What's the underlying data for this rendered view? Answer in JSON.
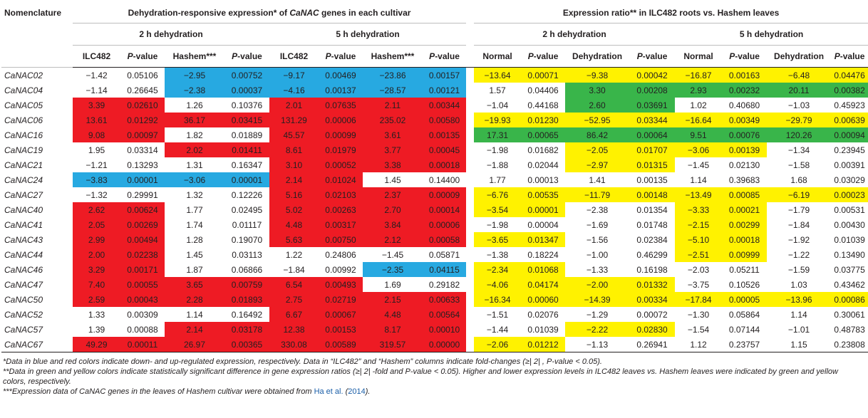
{
  "headers": {
    "nomenclature": "Nomenclature",
    "left_group_pre": "Dehydration-responsive expression* of ",
    "left_group_gene": "CaNAC",
    "left_group_post": " genes in each cultivar",
    "right_group": "Expression ratio** in ILC482 roots vs. Hashem leaves",
    "h2_2h": "2 h dehydration",
    "h2_5h": "5 h dehydration",
    "cols": {
      "ilc482": "ILC482",
      "pvalue_p": "P",
      "pvalue_rest": "-value",
      "hashem": "Hashem***",
      "normal": "Normal",
      "dehydration": "Dehydration"
    }
  },
  "rows": [
    {
      "gene": "CaNAC02",
      "v": [
        "−1.42",
        "0.05106",
        "−2.95",
        "0.00752",
        "−9.17",
        "0.00469",
        "−23.86",
        "0.00157",
        "−13.64",
        "0.00071",
        "−9.38",
        "0.00042",
        "−16.87",
        "0.00163",
        "−6.48",
        "0.04476"
      ],
      "c": [
        "",
        "",
        "b",
        "b",
        "b",
        "b",
        "b",
        "b",
        "y",
        "y",
        "y",
        "y",
        "y",
        "y",
        "y",
        "y"
      ]
    },
    {
      "gene": "CaNAC04",
      "v": [
        "−1.14",
        "0.26645",
        "−2.38",
        "0.00037",
        "−4.16",
        "0.00137",
        "−28.57",
        "0.00121",
        "1.57",
        "0.04406",
        "3.30",
        "0.00208",
        "2.93",
        "0.00232",
        "20.11",
        "0.00382"
      ],
      "c": [
        "",
        "",
        "b",
        "b",
        "b",
        "b",
        "b",
        "b",
        "",
        "",
        "g",
        "g",
        "g",
        "g",
        "g",
        "g"
      ]
    },
    {
      "gene": "CaNAC05",
      "v": [
        "3.39",
        "0.02610",
        "1.26",
        "0.10376",
        "2.01",
        "0.07635",
        "2.11",
        "0.00344",
        "−1.04",
        "0.44168",
        "2.60",
        "0.03691",
        "1.02",
        "0.40680",
        "−1.03",
        "0.45923"
      ],
      "c": [
        "r",
        "r",
        "",
        "",
        "r",
        "r",
        "r",
        "r",
        "",
        "",
        "g",
        "g",
        "",
        "",
        "",
        ""
      ]
    },
    {
      "gene": "CaNAC06",
      "v": [
        "13.61",
        "0.01292",
        "36.17",
        "0.03415",
        "131.29",
        "0.00006",
        "235.02",
        "0.00580",
        "−19.93",
        "0.01230",
        "−52.95",
        "0.03344",
        "−16.64",
        "0.00349",
        "−29.79",
        "0.00639"
      ],
      "c": [
        "r",
        "r",
        "r",
        "r",
        "r",
        "r",
        "r",
        "r",
        "y",
        "y",
        "y",
        "y",
        "y",
        "y",
        "y",
        "y"
      ]
    },
    {
      "gene": "CaNAC16",
      "v": [
        "9.08",
        "0.00097",
        "1.82",
        "0.01889",
        "45.57",
        "0.00099",
        "3.61",
        "0.00135",
        "17.31",
        "0.00065",
        "86.42",
        "0.00064",
        "9.51",
        "0.00076",
        "120.26",
        "0.00094"
      ],
      "c": [
        "r",
        "r",
        "",
        "",
        "r",
        "r",
        "r",
        "r",
        "g",
        "g",
        "g",
        "g",
        "g",
        "g",
        "g",
        "g"
      ]
    },
    {
      "gene": "CaNAC19",
      "v": [
        "1.95",
        "0.03314",
        "2.02",
        "0.01411",
        "8.61",
        "0.01979",
        "3.77",
        "0.00045",
        "−1.98",
        "0.01682",
        "−2.05",
        "0.01707",
        "−3.06",
        "0.00139",
        "−1.34",
        "0.23945"
      ],
      "c": [
        "",
        "",
        "r",
        "r",
        "r",
        "r",
        "r",
        "r",
        "",
        "",
        "y",
        "y",
        "y",
        "y",
        "",
        ""
      ]
    },
    {
      "gene": "CaNAC21",
      "v": [
        "−1.21",
        "0.13293",
        "1.31",
        "0.16347",
        "3.10",
        "0.00052",
        "3.38",
        "0.00018",
        "−1.88",
        "0.02044",
        "−2.97",
        "0.01315",
        "−1.45",
        "0.02130",
        "−1.58",
        "0.00391"
      ],
      "c": [
        "",
        "",
        "",
        "",
        "r",
        "r",
        "r",
        "r",
        "",
        "",
        "y",
        "y",
        "",
        "",
        "",
        ""
      ]
    },
    {
      "gene": "CaNAC24",
      "v": [
        "−3.83",
        "0.00001",
        "−3.06",
        "0.00001",
        "2.14",
        "0.01024",
        "1.45",
        "0.14400",
        "1.77",
        "0.00013",
        "1.41",
        "0.00135",
        "1.14",
        "0.39683",
        "1.68",
        "0.03029"
      ],
      "c": [
        "b",
        "b",
        "b",
        "b",
        "r",
        "r",
        "",
        "",
        "",
        "",
        "",
        "",
        "",
        "",
        "",
        ""
      ]
    },
    {
      "gene": "CaNAC27",
      "v": [
        "−1.32",
        "0.29991",
        "1.32",
        "0.12226",
        "5.16",
        "0.02103",
        "2.37",
        "0.00009",
        "−6.76",
        "0.00535",
        "−11.79",
        "0.00148",
        "−13.49",
        "0.00085",
        "−6.19",
        "0.00023"
      ],
      "c": [
        "",
        "",
        "",
        "",
        "r",
        "r",
        "r",
        "r",
        "y",
        "y",
        "y",
        "y",
        "y",
        "y",
        "y",
        "y"
      ]
    },
    {
      "gene": "CaNAC40",
      "v": [
        "2.62",
        "0.00624",
        "1.77",
        "0.02495",
        "5.02",
        "0.00263",
        "2.70",
        "0.00014",
        "−3.54",
        "0.00001",
        "−2.38",
        "0.01354",
        "−3.33",
        "0.00021",
        "−1.79",
        "0.00531"
      ],
      "c": [
        "r",
        "r",
        "",
        "",
        "r",
        "r",
        "r",
        "r",
        "y",
        "y",
        "",
        "",
        "y",
        "y",
        "",
        ""
      ]
    },
    {
      "gene": "CaNAC41",
      "v": [
        "2.05",
        "0.00269",
        "1.74",
        "0.01117",
        "4.48",
        "0.00317",
        "3.84",
        "0.00006",
        "−1.98",
        "0.00004",
        "−1.69",
        "0.01748",
        "−2.15",
        "0.00299",
        "−1.84",
        "0.00430"
      ],
      "c": [
        "r",
        "r",
        "",
        "",
        "r",
        "r",
        "r",
        "r",
        "",
        "",
        "",
        "",
        "y",
        "y",
        "",
        ""
      ]
    },
    {
      "gene": "CaNAC43",
      "v": [
        "2.99",
        "0.00494",
        "1.28",
        "0.19070",
        "5.63",
        "0.00750",
        "2.12",
        "0.00058",
        "−3.65",
        "0.01347",
        "−1.56",
        "0.02384",
        "−5.10",
        "0.00018",
        "−1.92",
        "0.01039"
      ],
      "c": [
        "r",
        "r",
        "",
        "",
        "r",
        "r",
        "r",
        "r",
        "y",
        "y",
        "",
        "",
        "y",
        "y",
        "",
        ""
      ]
    },
    {
      "gene": "CaNAC44",
      "v": [
        "2.00",
        "0.02238",
        "1.45",
        "0.03113",
        "1.22",
        "0.24806",
        "−1.45",
        "0.05871",
        "−1.38",
        "0.18224",
        "−1.00",
        "0.46299",
        "−2.51",
        "0.00999",
        "−1.22",
        "0.13490"
      ],
      "c": [
        "r",
        "r",
        "",
        "",
        "",
        "",
        "",
        "",
        "",
        "",
        "",
        "",
        "y",
        "y",
        "",
        ""
      ]
    },
    {
      "gene": "CaNAC46",
      "v": [
        "3.29",
        "0.00171",
        "1.87",
        "0.06866",
        "−1.84",
        "0.00992",
        "−2.35",
        "0.04115",
        "−2.34",
        "0.01068",
        "−1.33",
        "0.16198",
        "−2.03",
        "0.05211",
        "−1.59",
        "0.03775"
      ],
      "c": [
        "r",
        "r",
        "",
        "",
        "",
        "",
        "b",
        "b",
        "y",
        "y",
        "",
        "",
        "",
        "",
        "",
        ""
      ]
    },
    {
      "gene": "CaNAC47",
      "v": [
        "7.40",
        "0.00055",
        "3.65",
        "0.00759",
        "6.54",
        "0.00493",
        "1.69",
        "0.29182",
        "−4.06",
        "0.04174",
        "−2.00",
        "0.01332",
        "−3.75",
        "0.10526",
        "1.03",
        "0.43462"
      ],
      "c": [
        "r",
        "r",
        "r",
        "r",
        "r",
        "r",
        "",
        "",
        "y",
        "y",
        "y",
        "y",
        "",
        "",
        "",
        ""
      ]
    },
    {
      "gene": "CaNAC50",
      "v": [
        "2.59",
        "0.00043",
        "2.28",
        "0.01893",
        "2.75",
        "0.02719",
        "2.15",
        "0.00633",
        "−16.34",
        "0.00060",
        "−14.39",
        "0.00334",
        "−17.84",
        "0.00005",
        "−13.96",
        "0.00086"
      ],
      "c": [
        "r",
        "r",
        "r",
        "r",
        "r",
        "r",
        "r",
        "r",
        "y",
        "y",
        "y",
        "y",
        "y",
        "y",
        "y",
        "y"
      ]
    },
    {
      "gene": "CaNAC52",
      "v": [
        "1.33",
        "0.00309",
        "1.14",
        "0.16492",
        "6.67",
        "0.00067",
        "4.48",
        "0.00564",
        "−1.51",
        "0.02076",
        "−1.29",
        "0.00072",
        "−1.30",
        "0.05864",
        "1.14",
        "0.30061"
      ],
      "c": [
        "",
        "",
        "",
        "",
        "r",
        "r",
        "r",
        "r",
        "",
        "",
        "",
        "",
        "",
        "",
        "",
        ""
      ]
    },
    {
      "gene": "CaNAC57",
      "v": [
        "1.39",
        "0.00088",
        "2.14",
        "0.03178",
        "12.38",
        "0.00153",
        "8.17",
        "0.00010",
        "−1.44",
        "0.01039",
        "−2.22",
        "0.02830",
        "−1.54",
        "0.07144",
        "−1.01",
        "0.48783"
      ],
      "c": [
        "",
        "",
        "r",
        "r",
        "r",
        "r",
        "r",
        "r",
        "",
        "",
        "y",
        "y",
        "",
        "",
        "",
        ""
      ]
    },
    {
      "gene": "CaNAC67",
      "v": [
        "49.29",
        "0.00011",
        "26.97",
        "0.00365",
        "330.08",
        "0.00589",
        "319.57",
        "0.00000",
        "−2.06",
        "0.01212",
        "−1.13",
        "0.26941",
        "1.12",
        "0.23757",
        "1.15",
        "0.23808"
      ],
      "c": [
        "r",
        "r",
        "r",
        "r",
        "r",
        "r",
        "r",
        "r",
        "y",
        "y",
        "",
        "",
        "",
        "",
        "",
        ""
      ]
    }
  ],
  "notes": {
    "n1": "*Data in blue and red colors indicate down- and up-regulated expression, respectively. Data in “ILC482” and “Hashem” columns indicate fold-changes (≥| 2| , P-value < 0.05).",
    "n2": "**Data in green and yellow colors indicate statistically significant difference in gene expression ratios (≥| 2| -fold and P-value < 0.05). Higher and lower expression levels in ILC482 leaves vs. Hashem leaves were indicated by green and yellow colors, respectively.",
    "n3_pre": "***Expression data of CaNAC genes in the leaves of Hashem cultivar were obtained from ",
    "n3_cite": "Ha et al.",
    "n3_mid": " (",
    "n3_year": "2014",
    "n3_post": ")."
  },
  "colors": {
    "red": "#ee1b24",
    "blue": "#27a9e1",
    "yellow": "#fff200",
    "green": "#39b54a"
  }
}
